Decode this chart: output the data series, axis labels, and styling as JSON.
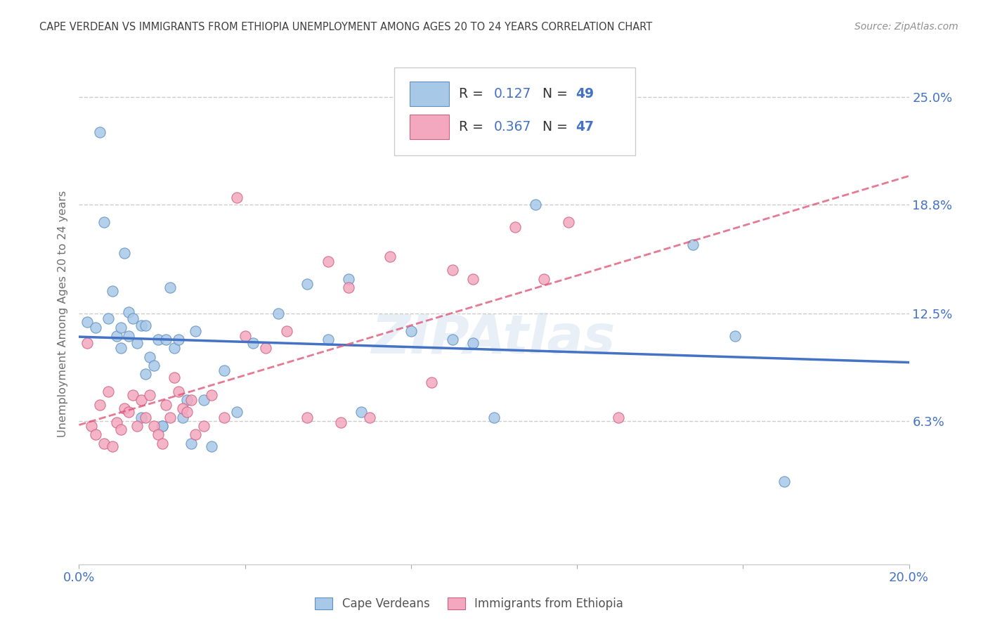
{
  "title": "CAPE VERDEAN VS IMMIGRANTS FROM ETHIOPIA UNEMPLOYMENT AMONG AGES 20 TO 24 YEARS CORRELATION CHART",
  "source": "Source: ZipAtlas.com",
  "ylabel": "Unemployment Among Ages 20 to 24 years",
  "xlim": [
    0.0,
    0.2
  ],
  "ylim": [
    -0.02,
    0.27
  ],
  "yticks": [
    0.063,
    0.125,
    0.188,
    0.25
  ],
  "ytick_labels": [
    "6.3%",
    "12.5%",
    "18.8%",
    "25.0%"
  ],
  "xticks": [
    0.0,
    0.04,
    0.08,
    0.12,
    0.16,
    0.2
  ],
  "xtick_labels": [
    "0.0%",
    "",
    "",
    "",
    "",
    "20.0%"
  ],
  "legend_labels": [
    "Cape Verdeans",
    "Immigrants from Ethiopia"
  ],
  "R_blue": 0.127,
  "N_blue": 49,
  "R_pink": 0.367,
  "N_pink": 47,
  "blue_color": "#a8c8e8",
  "pink_color": "#f4a8c0",
  "blue_line_color": "#4472c4",
  "pink_line_color": "#e05878",
  "axis_label_color": "#4472c4",
  "title_color": "#404040",
  "watermark": "ZIPAtlas",
  "background_color": "#ffffff",
  "grid_color": "#cccccc",
  "blue_scatter_x": [
    0.002,
    0.004,
    0.005,
    0.006,
    0.007,
    0.008,
    0.009,
    0.01,
    0.01,
    0.011,
    0.012,
    0.012,
    0.013,
    0.014,
    0.015,
    0.015,
    0.016,
    0.016,
    0.017,
    0.018,
    0.019,
    0.02,
    0.02,
    0.021,
    0.022,
    0.023,
    0.024,
    0.025,
    0.026,
    0.027,
    0.028,
    0.03,
    0.032,
    0.035,
    0.038,
    0.042,
    0.048,
    0.055,
    0.06,
    0.065,
    0.068,
    0.08,
    0.09,
    0.095,
    0.1,
    0.11,
    0.148,
    0.158,
    0.17
  ],
  "blue_scatter_y": [
    0.12,
    0.117,
    0.23,
    0.178,
    0.122,
    0.138,
    0.112,
    0.105,
    0.117,
    0.16,
    0.112,
    0.126,
    0.122,
    0.108,
    0.065,
    0.118,
    0.118,
    0.09,
    0.1,
    0.095,
    0.11,
    0.06,
    0.06,
    0.11,
    0.14,
    0.105,
    0.11,
    0.065,
    0.075,
    0.05,
    0.115,
    0.075,
    0.048,
    0.092,
    0.068,
    0.108,
    0.125,
    0.142,
    0.11,
    0.145,
    0.068,
    0.115,
    0.11,
    0.108,
    0.065,
    0.188,
    0.165,
    0.112,
    0.028
  ],
  "pink_scatter_x": [
    0.002,
    0.003,
    0.004,
    0.005,
    0.006,
    0.007,
    0.008,
    0.009,
    0.01,
    0.011,
    0.012,
    0.013,
    0.014,
    0.015,
    0.016,
    0.017,
    0.018,
    0.019,
    0.02,
    0.021,
    0.022,
    0.023,
    0.024,
    0.025,
    0.026,
    0.027,
    0.028,
    0.03,
    0.032,
    0.035,
    0.038,
    0.04,
    0.045,
    0.05,
    0.055,
    0.06,
    0.063,
    0.065,
    0.07,
    0.075,
    0.085,
    0.09,
    0.095,
    0.105,
    0.112,
    0.118,
    0.13
  ],
  "pink_scatter_y": [
    0.108,
    0.06,
    0.055,
    0.072,
    0.05,
    0.08,
    0.048,
    0.062,
    0.058,
    0.07,
    0.068,
    0.078,
    0.06,
    0.075,
    0.065,
    0.078,
    0.06,
    0.055,
    0.05,
    0.072,
    0.065,
    0.088,
    0.08,
    0.07,
    0.068,
    0.075,
    0.055,
    0.06,
    0.078,
    0.065,
    0.192,
    0.112,
    0.105,
    0.115,
    0.065,
    0.155,
    0.062,
    0.14,
    0.065,
    0.158,
    0.085,
    0.15,
    0.145,
    0.175,
    0.145,
    0.178,
    0.065
  ]
}
